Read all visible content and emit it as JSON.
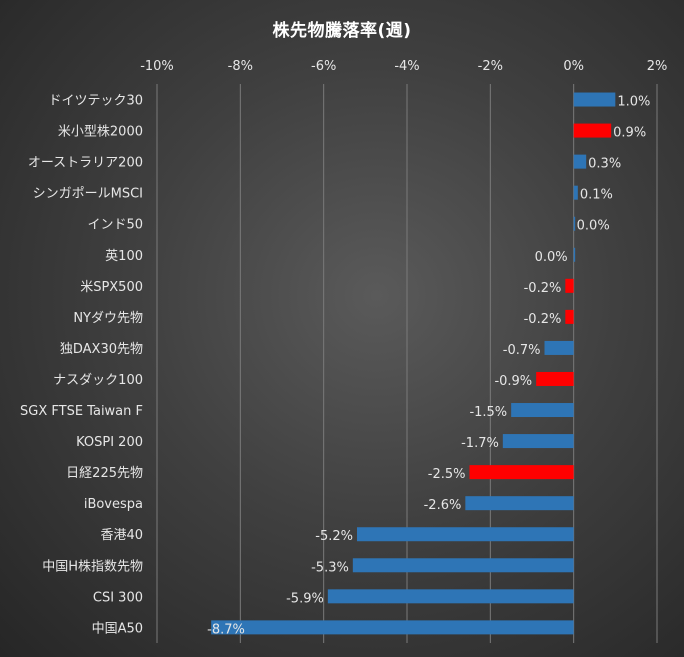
{
  "chart_data": {
    "type": "bar",
    "orientation": "horizontal",
    "title": "株先物騰落率(週)",
    "xlabel": "",
    "ylabel": "",
    "xlim": [
      -10,
      2
    ],
    "x_ticks": [
      -10,
      -8,
      -6,
      -4,
      -2,
      0,
      2
    ],
    "x_tick_labels": [
      "-10%",
      "-8%",
      "-6%",
      "-4%",
      "-2%",
      "0%",
      "2%"
    ],
    "grid": true,
    "legend": "none",
    "categories": [
      "ドイツテック30",
      "米小型株2000",
      "オーストラリア200",
      "シンガポールMSCI",
      "インド50",
      "英100",
      "米SPX500",
      "NYダウ先物",
      "独DAX30先物",
      "ナスダック100",
      "SGX FTSE Taiwan F",
      "KOSPI 200",
      "日経225先物",
      "iBovespa",
      "香港40",
      "中国H株指数先物",
      "CSI 300",
      "中国A50"
    ],
    "values": [
      1.0,
      0.9,
      0.3,
      0.1,
      0.0,
      0.0,
      -0.2,
      -0.2,
      -0.7,
      -0.9,
      -1.5,
      -1.7,
      -2.5,
      -2.6,
      -5.2,
      -5.3,
      -5.9,
      -8.7
    ],
    "data_labels": [
      "1.0%",
      "0.9%",
      "0.3%",
      "0.1%",
      "0.0%",
      "0.0%",
      "-0.2%",
      "-0.2%",
      "-0.7%",
      "-0.9%",
      "-1.5%",
      "-1.7%",
      "-2.5%",
      "-2.6%",
      "-5.2%",
      "-5.3%",
      "-5.9%",
      "-8.7%"
    ],
    "highlight": [
      false,
      true,
      false,
      false,
      false,
      false,
      true,
      true,
      false,
      true,
      false,
      false,
      true,
      false,
      false,
      false,
      false,
      false
    ],
    "colors": {
      "default": "#2e75b6",
      "highlight": "#ff0000",
      "grid": "#7a7a7a",
      "text": "#e6e6e6"
    }
  }
}
